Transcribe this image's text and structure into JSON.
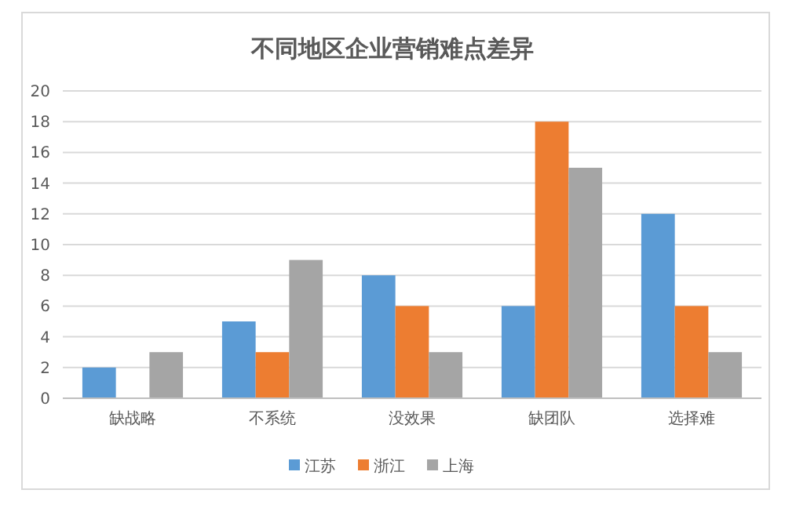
{
  "chart_data": {
    "type": "bar",
    "title": "不同地区企业营销难点差异",
    "categories": [
      "缺战略",
      "不系统",
      "没效果",
      "缺团队",
      "选择难"
    ],
    "series": [
      {
        "name": "江苏",
        "color": "#5b9bd5",
        "values": [
          2,
          5,
          8,
          6,
          12
        ]
      },
      {
        "name": "浙江",
        "color": "#ed7d31",
        "values": [
          0,
          3,
          6,
          18,
          6
        ]
      },
      {
        "name": "上海",
        "color": "#a5a5a5",
        "values": [
          3,
          9,
          3,
          15,
          3
        ]
      }
    ],
    "ylim": [
      0,
      20
    ],
    "yticks": [
      0,
      2,
      4,
      6,
      8,
      10,
      12,
      14,
      16,
      18,
      20
    ],
    "grid": "y",
    "legend": "bottom"
  }
}
